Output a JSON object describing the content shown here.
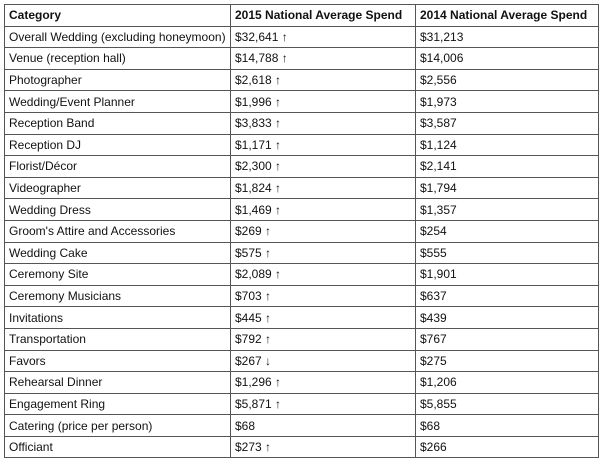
{
  "table": {
    "header": [
      "Category",
      "2015 National Average Spend",
      "2014 National Average Spend"
    ],
    "rows": [
      [
        "Overall Wedding (excluding honeymoon)",
        "$32,641 ↑",
        "$31,213"
      ],
      [
        "Venue (reception hall)",
        "$14,788 ↑",
        "$14,006"
      ],
      [
        "Photographer",
        "$2,618 ↑",
        "$2,556"
      ],
      [
        "Wedding/Event Planner",
        "$1,996 ↑",
        "$1,973"
      ],
      [
        "Reception Band",
        "$3,833 ↑",
        "$3,587"
      ],
      [
        "Reception DJ",
        "$1,171 ↑",
        "$1,124"
      ],
      [
        "Florist/Décor",
        "$2,300 ↑",
        "$2,141"
      ],
      [
        "Videographer",
        "$1,824 ↑",
        "$1,794"
      ],
      [
        "Wedding Dress",
        "$1,469 ↑",
        "$1,357"
      ],
      [
        "Groom's Attire and Accessories",
        "$269 ↑",
        "$254"
      ],
      [
        "Wedding Cake",
        "$575 ↑",
        "$555"
      ],
      [
        "Ceremony Site",
        "$2,089 ↑",
        "$1,901"
      ],
      [
        "Ceremony Musicians",
        "$703 ↑",
        "$637"
      ],
      [
        "Invitations",
        "$445 ↑",
        "$439"
      ],
      [
        "Transportation",
        "$792 ↑",
        "$767"
      ],
      [
        "Favors",
        "$267 ↓",
        "$275"
      ],
      [
        "Rehearsal Dinner",
        "$1,296 ↑",
        "$1,206"
      ],
      [
        "Engagement Ring",
        "$5,871 ↑",
        "$5,855"
      ],
      [
        "Catering (price per person)",
        "$68",
        "$68"
      ],
      [
        "Officiant",
        "$273 ↑",
        "$266"
      ]
    ]
  }
}
